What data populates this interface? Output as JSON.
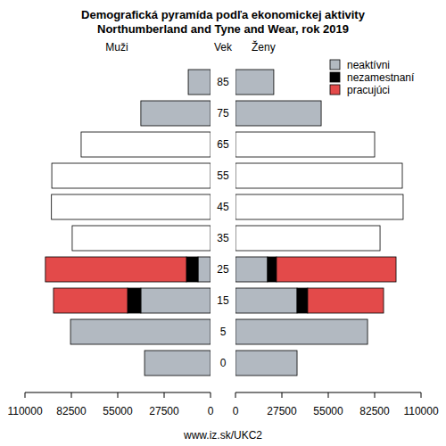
{
  "chart_data": [
    {
      "type": "bar",
      "orientation": "horizontal",
      "stacked": true,
      "title": "Demografická pyramída podľa ekonomickej aktivity",
      "subtitle": "Northumberland and Tyne and Wear, rok 2019",
      "side_label": "Muži",
      "ylabel": "Vek",
      "caption": "www.iz.sk/UKC2",
      "categories": [
        "0",
        "5",
        "15",
        "25",
        "35",
        "45",
        "55",
        "65",
        "75",
        "85"
      ],
      "xlim": [
        110000,
        0
      ],
      "xticks": [
        110000,
        82500,
        55000,
        27500,
        0
      ],
      "series": [
        {
          "name": "neaktívni",
          "color": "#b2b9c1",
          "values": [
            39100,
            83000,
            41300,
            7400,
            null,
            null,
            null,
            null,
            41300,
            13200
          ]
        },
        {
          "name": "nezamestnaní",
          "color": "#000000",
          "values": [
            null,
            null,
            7900,
            6900,
            null,
            null,
            null,
            null,
            null,
            null
          ]
        },
        {
          "name": "pracujúci",
          "color": "#e34a4a",
          "values": [
            null,
            null,
            43900,
            83600,
            null,
            null,
            null,
            null,
            null,
            null
          ]
        },
        {
          "name": null,
          "color": "#ffffff",
          "values": [
            null,
            null,
            null,
            null,
            82000,
            94300,
            94100,
            76700,
            null,
            null
          ]
        }
      ]
    },
    {
      "type": "bar",
      "orientation": "horizontal",
      "stacked": true,
      "side_label": "Ženy",
      "legend": "top-right",
      "categories": [
        "0",
        "5",
        "15",
        "25",
        "35",
        "45",
        "55",
        "65",
        "75",
        "85"
      ],
      "xlim": [
        0,
        110000
      ],
      "xticks": [
        0,
        27500,
        55000,
        82500,
        110000
      ],
      "series": [
        {
          "name": "neaktívni",
          "color": "#b2b9c1",
          "values": [
            36500,
            78300,
            36500,
            19000,
            null,
            null,
            null,
            null,
            50800,
            22700
          ]
        },
        {
          "name": "nezamestnaní",
          "color": "#000000",
          "values": [
            null,
            null,
            6300,
            5300,
            null,
            null,
            null,
            null,
            null,
            null
          ]
        },
        {
          "name": "pracujúci",
          "color": "#e34a4a",
          "values": [
            null,
            null,
            45000,
            70900,
            null,
            null,
            null,
            null,
            null,
            null
          ]
        },
        {
          "name": null,
          "color": "#ffffff",
          "values": [
            null,
            null,
            null,
            null,
            85700,
            99400,
            98900,
            82500,
            null,
            null
          ]
        }
      ]
    }
  ]
}
